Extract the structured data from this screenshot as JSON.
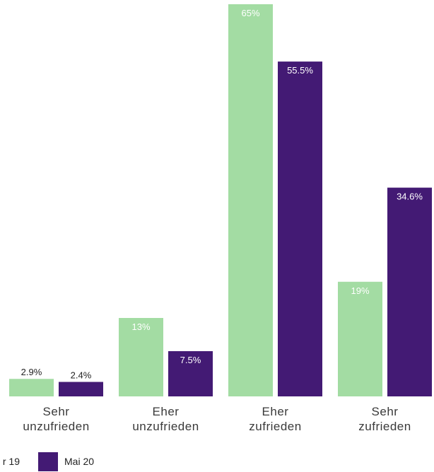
{
  "chart_data": {
    "type": "bar",
    "categories": [
      [
        "Sehr",
        "unzufrieden"
      ],
      [
        "Eher",
        "unzufrieden"
      ],
      [
        "Eher",
        "zufrieden"
      ],
      [
        "Sehr",
        "zufrieden"
      ]
    ],
    "series": [
      {
        "name": "r 19",
        "color": "#a3dca3",
        "values": [
          2.9,
          13,
          65,
          19
        ],
        "labels": [
          "2.9%",
          "13%",
          "65%",
          "19%"
        ]
      },
      {
        "name": "Mai 20",
        "color": "#431a74",
        "values": [
          2.4,
          7.5,
          55.5,
          34.6
        ],
        "labels": [
          "2.4%",
          "7.5%",
          "55.5%",
          "34.6%"
        ]
      }
    ],
    "ylim": [
      0,
      65
    ],
    "title": "",
    "xlabel": "",
    "ylabel": "",
    "grid": false,
    "legend_position": "bottom-left"
  }
}
